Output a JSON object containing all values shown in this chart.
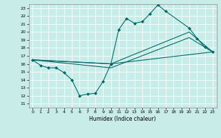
{
  "title": "",
  "xlabel": "Humidex (Indice chaleur)",
  "bg_color": "#c8ece8",
  "grid_color": "#ffffff",
  "line_color": "#006868",
  "xlim": [
    -0.5,
    23.5
  ],
  "ylim": [
    10.5,
    23.5
  ],
  "yticks": [
    11,
    12,
    13,
    14,
    15,
    16,
    17,
    18,
    19,
    20,
    21,
    22,
    23
  ],
  "xticks": [
    0,
    1,
    2,
    3,
    4,
    5,
    6,
    7,
    8,
    9,
    10,
    11,
    12,
    13,
    14,
    15,
    16,
    17,
    18,
    19,
    20,
    21,
    22,
    23
  ],
  "line1_x": [
    0,
    1,
    2,
    3,
    4,
    5,
    6,
    7,
    8,
    9,
    10,
    11,
    12,
    13,
    14,
    15,
    16,
    17,
    20,
    21,
    22,
    23
  ],
  "line1_y": [
    16.5,
    15.8,
    15.5,
    15.5,
    14.9,
    14.0,
    12.0,
    12.2,
    12.3,
    13.8,
    16.0,
    20.3,
    21.7,
    21.1,
    21.3,
    22.3,
    23.4,
    22.6,
    20.5,
    19.2,
    18.1,
    17.5
  ],
  "line2_x": [
    0,
    10,
    23
  ],
  "line2_y": [
    16.5,
    16.0,
    17.5
  ],
  "line3_x": [
    0,
    10,
    20,
    23
  ],
  "line3_y": [
    16.5,
    16.0,
    20.0,
    17.5
  ],
  "line4_x": [
    0,
    10,
    20,
    23
  ],
  "line4_y": [
    16.5,
    15.5,
    19.3,
    17.5
  ]
}
